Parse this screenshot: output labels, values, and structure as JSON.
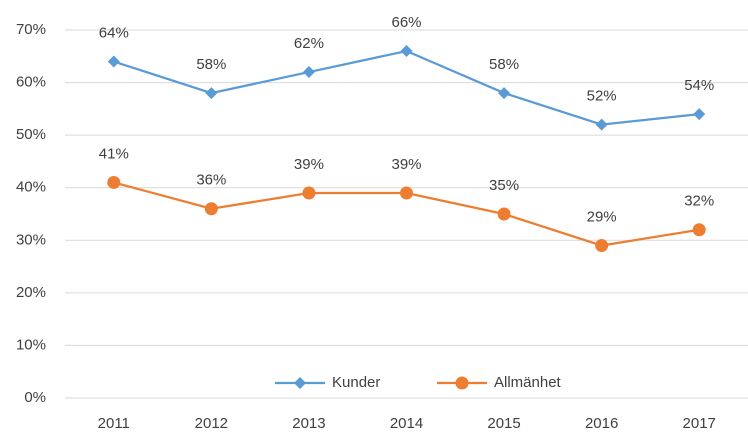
{
  "chart_data": {
    "type": "line",
    "categories": [
      "2011",
      "2012",
      "2013",
      "2014",
      "2015",
      "2016",
      "2017"
    ],
    "series": [
      {
        "name": "Kunder",
        "color": "#5b9bd5",
        "marker": "diamond",
        "values": [
          64,
          58,
          62,
          66,
          58,
          52,
          54
        ],
        "value_labels": [
          "64%",
          "58%",
          "62%",
          "66%",
          "58%",
          "52%",
          "54%"
        ]
      },
      {
        "name": "Allmänhet",
        "color": "#ed7d31",
        "marker": "circle",
        "values": [
          41,
          36,
          39,
          39,
          35,
          29,
          32
        ],
        "value_labels": [
          "41%",
          "36%",
          "39%",
          "39%",
          "35%",
          "29%",
          "32%"
        ]
      }
    ],
    "ylim": [
      0,
      70
    ],
    "yticks": [
      {
        "value": 0,
        "label": "0%"
      },
      {
        "value": 10,
        "label": "10%"
      },
      {
        "value": 20,
        "label": "20%"
      },
      {
        "value": 30,
        "label": "30%"
      },
      {
        "value": 40,
        "label": "40%"
      },
      {
        "value": 50,
        "label": "50%"
      },
      {
        "value": 60,
        "label": "60%"
      },
      {
        "value": 70,
        "label": "70%"
      }
    ],
    "grid": true,
    "legend": "bottom"
  }
}
